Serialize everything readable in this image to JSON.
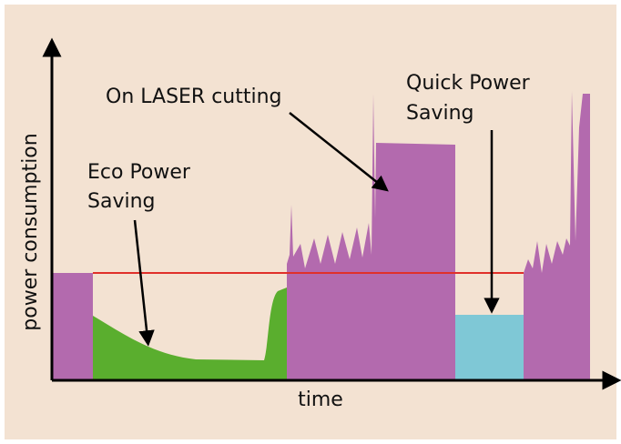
{
  "axes": {
    "y_label": "power consumption",
    "x_label": "time"
  },
  "annotations": [
    {
      "lines": [
        "Eco Power",
        "Saving"
      ]
    },
    {
      "lines": [
        "On LASER cutting"
      ]
    },
    {
      "lines": [
        "Quick Power",
        "Saving"
      ]
    }
  ]
}
